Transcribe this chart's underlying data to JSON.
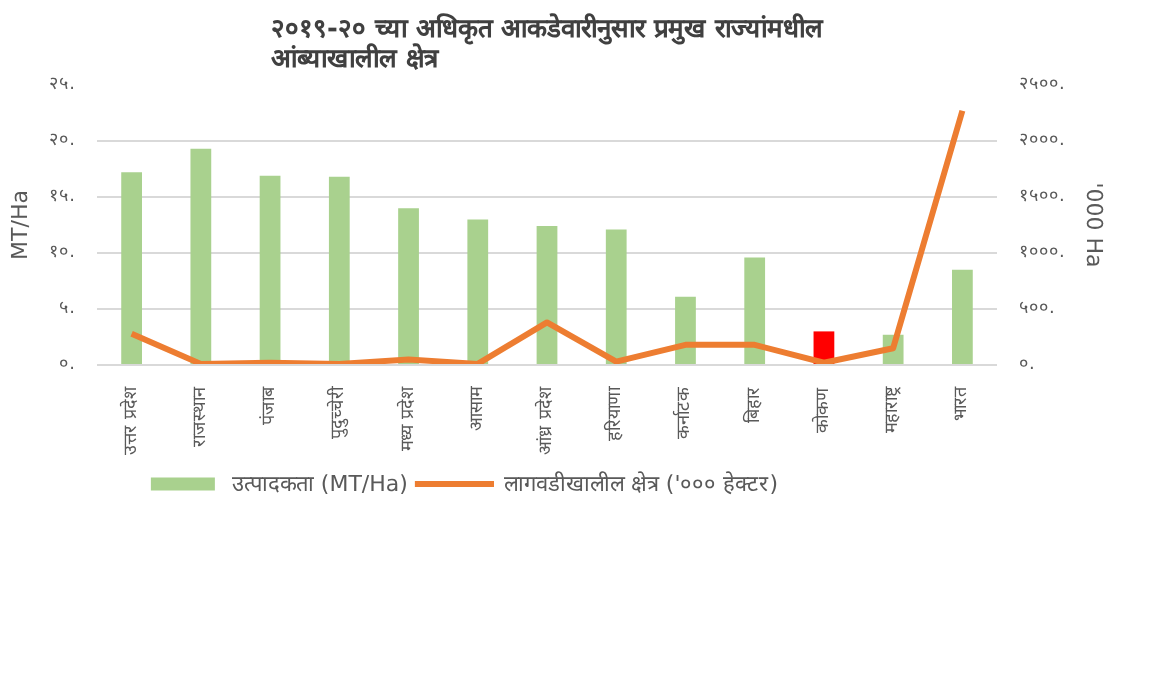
{
  "chart_data": {
    "type": "bar",
    "title": "२०१९-२० च्या अधिकृत आकडेवारीनुसार प्रमुख राज्यांमधील आंब्याखालील क्षेत्र",
    "categories": [
      "उत्तर प्रदेश",
      "राजस्थान",
      "पंजाब",
      "पुदुच्चेरी",
      "मध्य प्रदेश",
      "आसाम",
      "आंध्र प्रदेश",
      "हरियाणा",
      "कर्नाटक",
      "बिहार",
      "कोकण",
      "महाराष्ट्र",
      "भारत"
    ],
    "series": [
      {
        "name": "उत्पादकता (MT/Ha)",
        "color": "#a9d18e",
        "colors": [
          "#a9d18e",
          "#a9d18e",
          "#a9d18e",
          "#a9d18e",
          "#a9d18e",
          "#a9d18e",
          "#a9d18e",
          "#a9d18e",
          "#a9d18e",
          "#a9d18e",
          "#ff0000",
          "#a9d18e",
          "#a9d18e"
        ],
        "values": [
          17.2,
          19.3,
          16.9,
          16.8,
          14.0,
          13.0,
          12.4,
          12.1,
          6.1,
          9.6,
          3.0,
          2.7,
          8.5
        ]
      },
      {
        "name": "लागवडीखालील क्षेत्र ('००० हेक्टर)",
        "type": "line",
        "axis": "y2",
        "color": "#ed7d31",
        "values": [
          280,
          10,
          20,
          10,
          50,
          10,
          380,
          30,
          180,
          180,
          20,
          150,
          2270
        ]
      }
    ],
    "ylabel": "MT/Ha",
    "y2label": "'000 Ha",
    "ylim": [
      0,
      25
    ],
    "yticks": [
      {
        "value": 0,
        "label": "०."
      },
      {
        "value": 5,
        "label": "५."
      },
      {
        "value": 10,
        "label": "१०."
      },
      {
        "value": 15,
        "label": "१५."
      },
      {
        "value": 20,
        "label": "२०."
      },
      {
        "value": 25,
        "label": "२५."
      }
    ],
    "y2lim": [
      0,
      2500
    ],
    "y2ticks": [
      {
        "value": 0,
        "label": "०."
      },
      {
        "value": 500,
        "label": "५००."
      },
      {
        "value": 1000,
        "label": "१०००."
      },
      {
        "value": 1500,
        "label": "१५००."
      },
      {
        "value": 2000,
        "label": "२०००."
      },
      {
        "value": 2500,
        "label": "२५००."
      }
    ],
    "grid": "y",
    "legend": "bottom"
  }
}
